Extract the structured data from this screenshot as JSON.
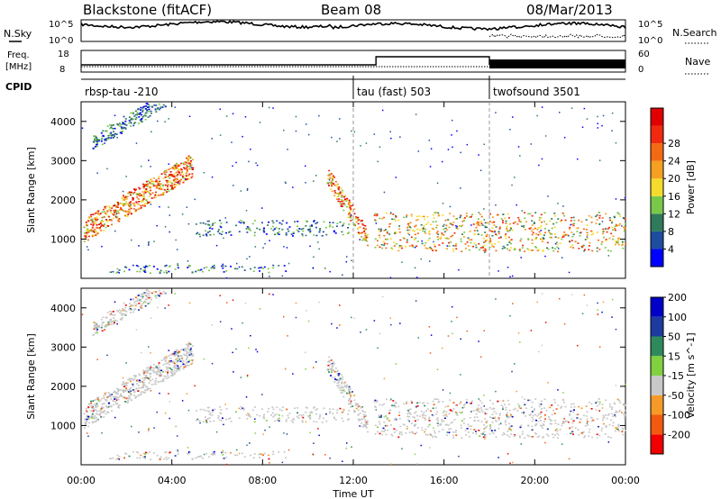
{
  "header": {
    "station": "Blackstone (fitACF)",
    "beam": "Beam 08",
    "date": "08/Mar/2013"
  },
  "noise_panel": {
    "left_label": "N.Sky",
    "right_label": "N.Search",
    "left_ticks": [
      "10^5",
      "10^0"
    ],
    "right_ticks": [
      "10^5",
      "10^0"
    ]
  },
  "freq_panel": {
    "left_label_1": "Freq.",
    "left_label_2": "[MHz]",
    "right_label": "Nave",
    "left_ticks": [
      "18",
      "8"
    ],
    "right_ticks": [
      "60",
      "0"
    ]
  },
  "cpid_panel": {
    "label": "CPID",
    "modes": [
      {
        "name": "rbsp-tau -210",
        "start_hour": 0
      },
      {
        "name": "tau (fast) 503",
        "start_hour": 12
      },
      {
        "name": "twofsound 3501",
        "start_hour": 18
      }
    ]
  },
  "time_axis": {
    "label": "Time UT",
    "ticks": [
      "00:00",
      "04:00",
      "08:00",
      "12:00",
      "16:00",
      "20:00",
      "00:00"
    ]
  },
  "colors": {
    "power": [
      "#0000ff",
      "#1e4da0",
      "#2f7a5b",
      "#7ac84a",
      "#f5dc2c",
      "#f5a020",
      "#f46a14",
      "#f02a10",
      "#e00000"
    ],
    "velocity": [
      "#f00000",
      "#f25a10",
      "#f59a28",
      "#c8c8c8",
      "#80d040",
      "#2e8a5c",
      "#1e3aa0",
      "#0000c8"
    ]
  },
  "chart_data": [
    {
      "type": "heatmap",
      "title": "",
      "ylabel": "Slant Range [km]",
      "xlabel": "Time UT",
      "xlim": [
        0,
        24
      ],
      "ylim": [
        0,
        4500
      ],
      "y_ticks": [
        1000,
        2000,
        3000,
        4000
      ],
      "colorbar": {
        "label": "Power [dB]",
        "ticks": [
          "4",
          "8",
          "12",
          "16",
          "20",
          "24",
          "28"
        ],
        "range": [
          0,
          30
        ]
      },
      "scatter_regions": [
        {
          "t": [
            0.5,
            3.7
          ],
          "range_km": [
            3200,
            4400
          ],
          "intensity": "weak"
        },
        {
          "t": [
            0.1,
            4.9
          ],
          "range_km": [
            900,
            3000
          ],
          "intensity": "strong"
        },
        {
          "t": [
            5.0,
            11.8
          ],
          "range_km": [
            1100,
            1500
          ],
          "intensity": "weak"
        },
        {
          "t": [
            10.8,
            12.6
          ],
          "range_km": [
            900,
            2500
          ],
          "intensity": "strong"
        },
        {
          "t": [
            12.9,
            24.0
          ],
          "range_km": [
            700,
            1700
          ],
          "intensity": "moderate"
        },
        {
          "t": [
            1.0,
            9.0
          ],
          "range_km": [
            150,
            350
          ],
          "intensity": "weak"
        }
      ]
    },
    {
      "type": "heatmap",
      "title": "",
      "ylabel": "Slant Range [km]",
      "xlabel": "Time UT",
      "xlim": [
        0,
        24
      ],
      "ylim": [
        0,
        4500
      ],
      "y_ticks": [
        1000,
        2000,
        3000,
        4000
      ],
      "colorbar": {
        "label": "Velocity [m s^-1]",
        "ticks": [
          "-200",
          "-100",
          "-50",
          "-15",
          "15",
          "50",
          "100",
          "200"
        ],
        "range": [
          -250,
          250
        ]
      },
      "dominant_value": "-15 to 15"
    }
  ]
}
